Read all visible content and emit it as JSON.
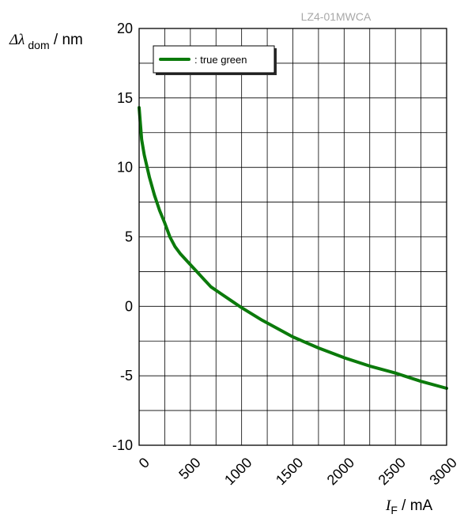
{
  "chart_data": {
    "type": "line",
    "title": "LZ4-01MWCA",
    "ylabel": {
      "symbol": "Δλ",
      "subscript": "dom",
      "unit": " / nm"
    },
    "xlabel": {
      "symbol": "I",
      "subscript": "F",
      "unit": " / mA"
    },
    "xlim": [
      0,
      3000
    ],
    "ylim": [
      -10,
      20
    ],
    "x_ticks": [
      0,
      500,
      1000,
      1500,
      2000,
      2500,
      3000
    ],
    "x_tick_labels": [
      "0",
      "500",
      "1000",
      "1500",
      "2000",
      "2500",
      "3000"
    ],
    "y_ticks": [
      -10,
      -5,
      0,
      5,
      10,
      15,
      20
    ],
    "y_tick_labels": [
      "-10",
      "-5",
      "0",
      "5",
      "10",
      "15",
      "20"
    ],
    "x_grid_step": 250,
    "y_grid_step": 2.5,
    "grid": true,
    "legend_position": "top-left",
    "series": [
      {
        "name": ": true green",
        "color": "#0b7a0b",
        "x": [
          0,
          25,
          50,
          100,
          150,
          200,
          250,
          300,
          350,
          400,
          500,
          600,
          700,
          800,
          900,
          1000,
          1200,
          1500,
          1750,
          2000,
          2250,
          2500,
          2750,
          3000
        ],
        "y": [
          14.3,
          12.0,
          10.9,
          9.3,
          8.0,
          6.9,
          6.0,
          5.0,
          4.3,
          3.8,
          3.0,
          2.2,
          1.4,
          0.9,
          0.4,
          -0.1,
          -1.0,
          -2.2,
          -3.0,
          -3.7,
          -4.3,
          -4.8,
          -5.4,
          -5.9
        ]
      }
    ]
  }
}
